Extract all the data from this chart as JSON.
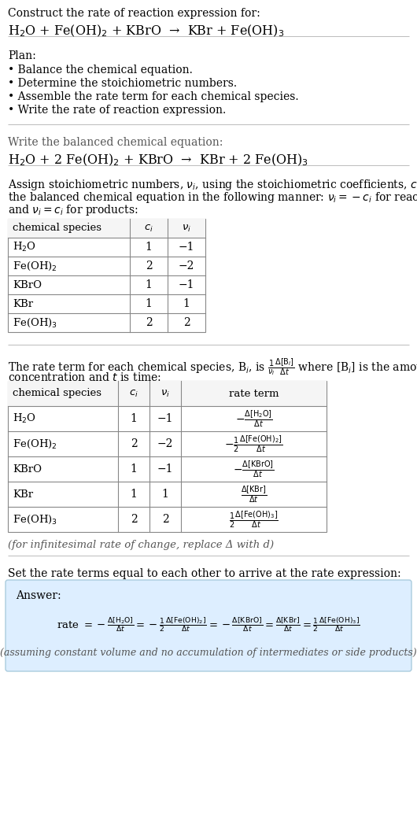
{
  "title_line1": "Construct the rate of reaction expression for:",
  "title_line2": "H$_2$O + Fe(OH)$_2$ + KBrO  →  KBr + Fe(OH)$_3$",
  "plan_header": "Plan:",
  "plan_items": [
    "• Balance the chemical equation.",
    "• Determine the stoichiometric numbers.",
    "• Assemble the rate term for each chemical species.",
    "• Write the rate of reaction expression."
  ],
  "balanced_header": "Write the balanced chemical equation:",
  "balanced_eq": "H$_2$O + 2 Fe(OH)$_2$ + KBrO  →  KBr + 2 Fe(OH)$_3$",
  "stoich_intro": "Assign stoichiometric numbers, $\\nu_i$, using the stoichiometric coefficients, $c_i$, from\nthe balanced chemical equation in the following manner: $\\nu_i = -c_i$ for reactants\nand $\\nu_i = c_i$ for products:",
  "table1_headers": [
    "chemical species",
    "$c_i$",
    "$\\nu_i$"
  ],
  "table1_rows": [
    [
      "H$_2$O",
      "1",
      "−1"
    ],
    [
      "Fe(OH)$_2$",
      "2",
      "−2"
    ],
    [
      "KBrO",
      "1",
      "−1"
    ],
    [
      "KBr",
      "1",
      "1"
    ],
    [
      "Fe(OH)$_3$",
      "2",
      "2"
    ]
  ],
  "rate_intro_line1": "The rate term for each chemical species, B$_i$, is $\\frac{1}{\\nu_i}\\frac{\\Delta[\\mathrm{B}_i]}{\\Delta t}$ where [B$_i$] is the amount",
  "rate_intro_line2": "concentration and $t$ is time:",
  "table2_headers": [
    "chemical species",
    "$c_i$",
    "$\\nu_i$",
    "rate term"
  ],
  "table2_rows": [
    [
      "H$_2$O",
      "1",
      "−1",
      "$-\\frac{\\Delta[\\mathrm{H_2O}]}{\\Delta t}$"
    ],
    [
      "Fe(OH)$_2$",
      "2",
      "−2",
      "$-\\frac{1}{2}\\frac{\\Delta[\\mathrm{Fe(OH)_2}]}{\\Delta t}$"
    ],
    [
      "KBrO",
      "1",
      "−1",
      "$-\\frac{\\Delta[\\mathrm{KBrO}]}{\\Delta t}$"
    ],
    [
      "KBr",
      "1",
      "1",
      "$\\frac{\\Delta[\\mathrm{KBr}]}{\\Delta t}$"
    ],
    [
      "Fe(OH)$_3$",
      "2",
      "2",
      "$\\frac{1}{2}\\frac{\\Delta[\\mathrm{Fe(OH)_3}]}{\\Delta t}$"
    ]
  ],
  "infinitesimal_note": "(for infinitesimal rate of change, replace Δ with d)",
  "answer_header": "Set the rate terms equal to each other to arrive at the rate expression:",
  "answer_label": "Answer:",
  "answer_eq_parts": [
    "rate $= -\\frac{\\Delta[\\mathrm{H_2O}]}{\\Delta t}$",
    "$= -\\frac{1}{2}\\frac{\\Delta[\\mathrm{Fe(OH)_2}]}{\\Delta t}$",
    "$= -\\frac{\\Delta[\\mathrm{KBrO}]}{\\Delta t}$",
    "$= \\frac{\\Delta[\\mathrm{KBr}]}{\\Delta t}$",
    "$= \\frac{1}{2}\\frac{\\Delta[\\mathrm{Fe(OH)_3}]}{\\Delta t}$"
  ],
  "answer_note": "(assuming constant volume and no accumulation of intermediates or side products)",
  "bg_color": "#ffffff",
  "answer_box_color": "#ddeeff",
  "answer_box_edge": "#aaccdd",
  "text_color": "#000000",
  "gray_text": "#555555",
  "separator_color": "#bbbbbb",
  "table_border_color": "#888888",
  "font_size": 10,
  "mono_font": "DejaVu Sans Mono"
}
